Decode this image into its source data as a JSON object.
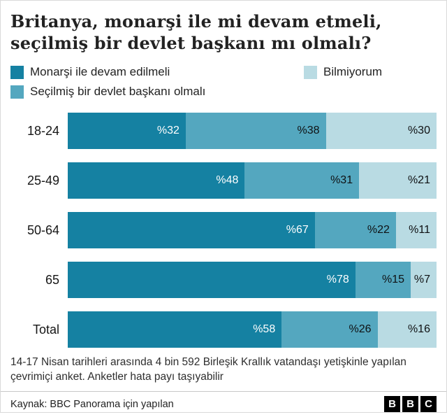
{
  "title": "Britanya, monarşi ile mi devam etmeli, seçilmiş bir devlet başkanı mı olmalı?",
  "legend": [
    {
      "label": "Monarşi ile devam edilmeli",
      "color": "#1581a2"
    },
    {
      "label": "Seçilmiş bir devlet başkanı olmalı",
      "color": "#54a7bf"
    },
    {
      "label": "Bilmiyorum",
      "color": "#b9dbe3"
    }
  ],
  "chart_data": {
    "type": "bar",
    "stacked": true,
    "orientation": "horizontal",
    "title": "Britanya, monarşi ile mi devam etmeli, seçilmiş bir devlet başkanı mı olmalı?",
    "categories": [
      "18-24",
      "25-49",
      "50-64",
      "65",
      "Total"
    ],
    "series": [
      {
        "name": "Monarşi ile devam edilmeli",
        "color": "#1581a2",
        "values": [
          32,
          48,
          67,
          78,
          58
        ]
      },
      {
        "name": "Seçilmiş bir devlet başkanı olmalı",
        "color": "#54a7bf",
        "values": [
          38,
          31,
          22,
          15,
          26
        ]
      },
      {
        "name": "Bilmiyorum",
        "color": "#b9dbe3",
        "values": [
          30,
          21,
          11,
          7,
          16
        ]
      }
    ],
    "value_prefix": "%",
    "xlim": [
      0,
      100
    ],
    "legend_position": "top",
    "grid": false
  },
  "value_label_colors": {
    "first_series": "#ffffff",
    "other_series": "#0f1113"
  },
  "footnote": "14-17 Nisan tarihleri arasında 4 bin 592 Birleşik Krallık vatandaşı yetişkinle yapılan çevrimiçi anket. Anketler hata payı taşıyabilir",
  "source": "Kaynak: BBC Panorama için yapılan",
  "logo": {
    "letters": [
      "B",
      "B",
      "C"
    ]
  }
}
